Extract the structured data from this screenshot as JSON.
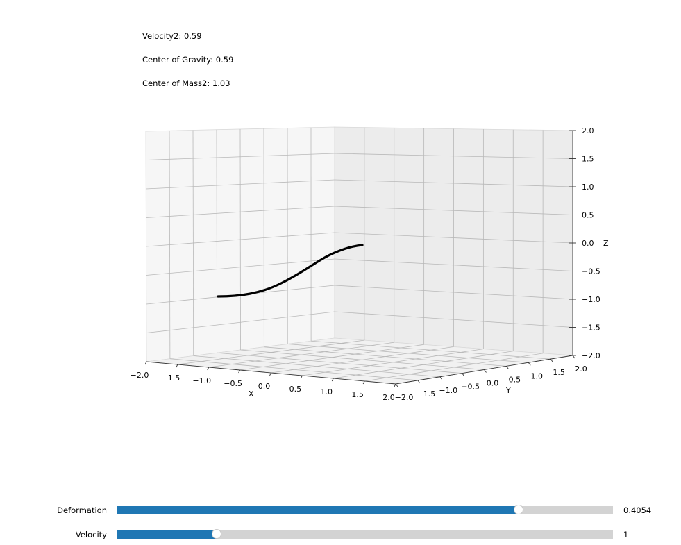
{
  "info": {
    "velocity2": "Velocity2: 0.59",
    "center_of_gravity": "Center of Gravity: 0.59",
    "center_of_mass2": "Center of Mass2: 1.03"
  },
  "plot": {
    "x_axis_label": "X",
    "y_axis_label": "Y",
    "z_axis_label": "Z",
    "x_ticks": [
      "−2.0",
      "−1.5",
      "−1.0",
      "−0.5",
      "0.0",
      "0.5",
      "1.0",
      "1.5",
      "2.0"
    ],
    "y_ticks": [
      "−2.0",
      "−1.5",
      "−1.0",
      "−0.5",
      "0.0",
      "0.5",
      "1.0",
      "1.5",
      "2.0"
    ],
    "z_ticks": [
      "2.0",
      "1.5",
      "1.0",
      "0.5",
      "0.0",
      "−0.5",
      "−1.0",
      "−1.5",
      "−2.0"
    ],
    "xlim": [
      -2,
      2
    ],
    "ylim": [
      -2,
      2
    ],
    "zlim": [
      -2,
      2
    ],
    "curve_color": "#000000"
  },
  "sliders": [
    {
      "label": "Deformation",
      "value_text": "0.4054",
      "fill_fraction": 0.81,
      "marker_fraction": 0.2,
      "accent": "#1f77b4"
    },
    {
      "label": "Velocity",
      "value_text": "1",
      "fill_fraction": 0.2,
      "accent": "#1f77b4"
    }
  ]
}
